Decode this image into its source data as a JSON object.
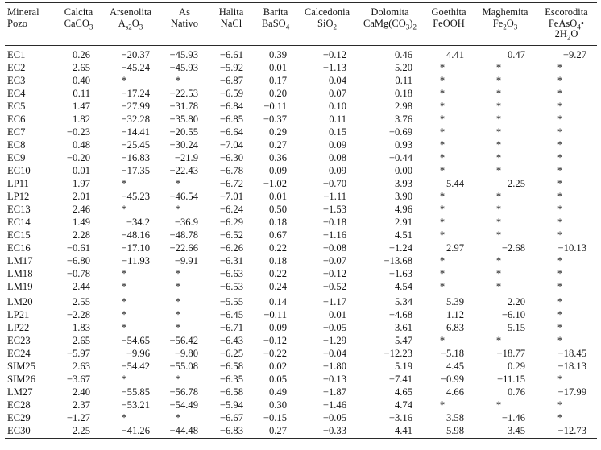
{
  "table": {
    "columns": [
      {
        "key": "mineral-pozo",
        "label": "Mineral",
        "sub_lines": [
          "Pozo"
        ]
      },
      {
        "key": "calcita",
        "label": "Calcita",
        "sub_lines": [
          "CaCO_3_"
        ]
      },
      {
        "key": "arsenolita",
        "label": "Arsenolita",
        "sub_lines": [
          "A_s2_O_3_"
        ]
      },
      {
        "key": "as-nativo",
        "label": "As",
        "sub_lines": [
          "Nativo"
        ]
      },
      {
        "key": "halita",
        "label": "Halita",
        "sub_lines": [
          "NaCl"
        ]
      },
      {
        "key": "barita",
        "label": "Barita",
        "sub_lines": [
          "BaSO_4_"
        ]
      },
      {
        "key": "calcedonia",
        "label": "Calcedonia",
        "sub_lines": [
          "SiO_2_"
        ]
      },
      {
        "key": "dolomita",
        "label": "Dolomita",
        "sub_lines": [
          "CaMg(CO_3_)_2_"
        ]
      },
      {
        "key": "goethita",
        "label": "Goethita",
        "sub_lines": [
          "FeOOH"
        ]
      },
      {
        "key": "maghemita",
        "label": "Maghemita",
        "sub_lines": [
          "Fe_2_O_3_"
        ]
      },
      {
        "key": "escorodita",
        "label": "Escorodita",
        "sub_lines": [
          "FeAsO_4_•",
          "2H_2_O"
        ]
      }
    ],
    "missing_marker": "*",
    "rows": [
      {
        "id": "EC1",
        "values": [
          "0.26",
          "−20.37",
          "−45.93",
          "−6.61",
          "0.39",
          "−0.12",
          "0.46",
          "4.41",
          "0.47",
          "−9.27"
        ]
      },
      {
        "id": "EC2",
        "values": [
          "2.65",
          "−45.24",
          "−45.93",
          "−5.92",
          "0.01",
          "−1.13",
          "5.20",
          "*",
          "*",
          "*"
        ]
      },
      {
        "id": "EC3",
        "values": [
          "0.40",
          "*",
          "*",
          "−6.87",
          "0.17",
          "0.04",
          "0.11",
          "*",
          "*",
          "*"
        ]
      },
      {
        "id": "EC4",
        "values": [
          "0.11",
          "−17.24",
          "−22.53",
          "−6.59",
          "0.20",
          "0.07",
          "0.18",
          "*",
          "*",
          "*"
        ]
      },
      {
        "id": "EC5",
        "values": [
          "1.47",
          "−27.99",
          "−31.78",
          "−6.84",
          "−0.11",
          "0.10",
          "2.98",
          "*",
          "*",
          "*"
        ]
      },
      {
        "id": "EC6",
        "values": [
          "1.82",
          "−32.28",
          "−35.80",
          "−6.85",
          "−0.37",
          "0.11",
          "3.76",
          "*",
          "*",
          "*"
        ]
      },
      {
        "id": "EC7",
        "values": [
          "−0.23",
          "−14.41",
          "−20.55",
          "−6.64",
          "0.29",
          "0.15",
          "−0.69",
          "*",
          "*",
          "*"
        ]
      },
      {
        "id": "EC8",
        "values": [
          "0.48",
          "−25.45",
          "−30.24",
          "−7.04",
          "0.27",
          "0.09",
          "0.93",
          "*",
          "*",
          "*"
        ]
      },
      {
        "id": "EC9",
        "values": [
          "−0.20",
          "−16.83",
          "−21.9",
          "−6.30",
          "0.36",
          "0.08",
          "−0.44",
          "*",
          "*",
          "*"
        ]
      },
      {
        "id": "EC10",
        "values": [
          "0.01",
          "−17.35",
          "−22.43",
          "−6.78",
          "0.09",
          "0.09",
          "0.00",
          "*",
          "*",
          "*"
        ]
      },
      {
        "id": "LP11",
        "values": [
          "1.97",
          "*",
          "*",
          "−6.72",
          "−1.02",
          "−0.70",
          "3.93",
          "5.44",
          "2.25",
          "*"
        ]
      },
      {
        "id": "LP12",
        "values": [
          "2.01",
          "−45.23",
          "−46.54",
          "−7.01",
          "0.01",
          "−1.11",
          "3.90",
          "*",
          "*",
          "*"
        ]
      },
      {
        "id": "EC13",
        "values": [
          "2.46",
          "*",
          "*",
          "−6.24",
          "0.50",
          "−1.53",
          "4.96",
          "*",
          "*",
          "*"
        ]
      },
      {
        "id": "EC14",
        "values": [
          "1.49",
          "−34.2",
          "−36.9",
          "−6.29",
          "0.18",
          "−0.18",
          "2.91",
          "*",
          "*",
          "*"
        ]
      },
      {
        "id": "EC15",
        "values": [
          "2.28",
          "−48.16",
          "−48.78",
          "−6.52",
          "0.67",
          "−1.16",
          "4.51",
          "*",
          "*",
          "*"
        ]
      },
      {
        "id": "EC16",
        "values": [
          "−0.61",
          "−17.10",
          "−22.66",
          "−6.26",
          "0.22",
          "−0.08",
          "−1.24",
          "2.97",
          "−2.68",
          "−10.13"
        ]
      },
      {
        "id": "LM17",
        "values": [
          "−6.80",
          "−11.93",
          "−9.91",
          "−6.31",
          "0.18",
          "−0.07",
          "−13.68",
          "*",
          "*",
          "*"
        ]
      },
      {
        "id": "LM18",
        "values": [
          "−0.78",
          "*",
          "*",
          "−6.63",
          "0.22",
          "−0.12",
          "−1.63",
          "*",
          "*",
          "*"
        ]
      },
      {
        "id": "LM19",
        "values": [
          "2.44",
          "*",
          "*",
          "−6.53",
          "0.24",
          "−0.52",
          "4.54",
          "*",
          "*",
          "*"
        ]
      },
      {
        "id": "LM20",
        "gap_before": true,
        "values": [
          "2.55",
          "*",
          "*",
          "−5.55",
          "0.14",
          "−1.17",
          "5.34",
          "5.39",
          "2.20",
          "*"
        ]
      },
      {
        "id": "LP21",
        "values": [
          "−2.28",
          "*",
          "*",
          "−6.45",
          "−0.11",
          "0.01",
          "−4.68",
          "1.12",
          "−6.10",
          "*"
        ]
      },
      {
        "id": "LP22",
        "values": [
          "1.83",
          "*",
          "*",
          "−6.71",
          "0.09",
          "−0.05",
          "3.61",
          "6.83",
          "5.15",
          "*"
        ]
      },
      {
        "id": "EC23",
        "values": [
          "2.65",
          "−54.65",
          "−56.42",
          "−6.43",
          "−0.12",
          "−1.29",
          "5.47",
          "*",
          "*",
          "*"
        ]
      },
      {
        "id": "EC24",
        "values": [
          "−5.97",
          "−9.96",
          "−9.80",
          "−6.25",
          "−0.22",
          "−0.04",
          "−12.23",
          "−5.18",
          "−18.77",
          "−18.45"
        ]
      },
      {
        "id": "SIM25",
        "values": [
          "2.63",
          "−54.42",
          "−55.08",
          "−6.58",
          "0.02",
          "−1.80",
          "5.19",
          "4.45",
          "0.29",
          "−18.13"
        ]
      },
      {
        "id": "SIM26",
        "values": [
          "−3.67",
          "*",
          "*",
          "−6.35",
          "0.05",
          "−0.13",
          "−7.41",
          "−0.99",
          "−11.15",
          "*"
        ]
      },
      {
        "id": "LM27",
        "values": [
          "2.40",
          "−55.85",
          "−56.78",
          "−6.58",
          "0.49",
          "−1.87",
          "4.65",
          "4.66",
          "0.76",
          "−17.99"
        ]
      },
      {
        "id": "EC28",
        "values": [
          "2.37",
          "−53.21",
          "−54.49",
          "−5.94",
          "0.30",
          "−1.46",
          "4.74",
          "*",
          "*",
          "*"
        ]
      },
      {
        "id": "EC29",
        "values": [
          "−1.27",
          "*",
          "*",
          "−6.67",
          "−0.15",
          "−0.05",
          "−3.16",
          "3.58",
          "−1.46",
          "*"
        ]
      },
      {
        "id": "EC30",
        "values": [
          "2.25",
          "−41.26",
          "−44.48",
          "−6.83",
          "0.27",
          "−0.33",
          "4.41",
          "5.98",
          "3.45",
          "−12.73"
        ]
      }
    ]
  }
}
